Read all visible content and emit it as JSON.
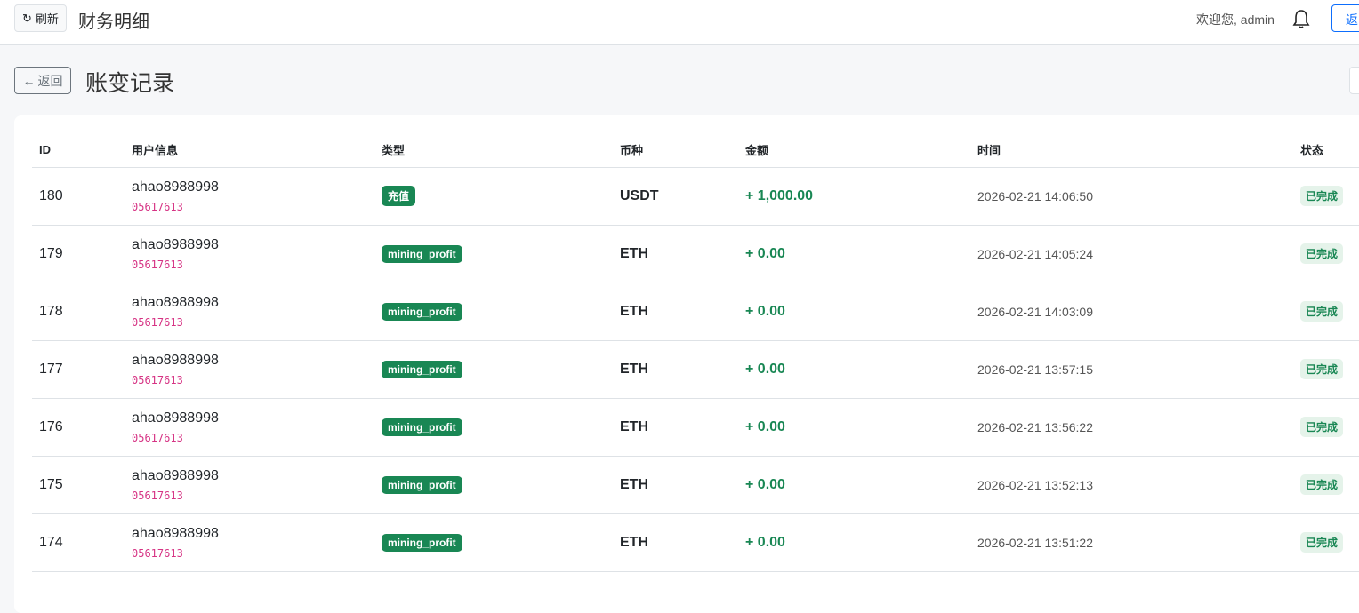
{
  "topbar": {
    "refresh_label": "刷新",
    "title": "财务明细",
    "welcome": "欢迎您, admin",
    "return_label": "返回"
  },
  "page": {
    "back_label": "返回",
    "title": "账变记录"
  },
  "table": {
    "headers": [
      "ID",
      "用户信息",
      "类型",
      "币种",
      "金额",
      "时间",
      "状态"
    ],
    "rows": [
      {
        "id": "180",
        "user": "ahao8988998",
        "uid": "05617613",
        "type": "充值",
        "coin": "USDT",
        "amount": "+ 1,000.00",
        "time": "2026-02-21 14:06:50",
        "status": "已完成"
      },
      {
        "id": "179",
        "user": "ahao8988998",
        "uid": "05617613",
        "type": "mining_profit",
        "coin": "ETH",
        "amount": "+ 0.00",
        "time": "2026-02-21 14:05:24",
        "status": "已完成"
      },
      {
        "id": "178",
        "user": "ahao8988998",
        "uid": "05617613",
        "type": "mining_profit",
        "coin": "ETH",
        "amount": "+ 0.00",
        "time": "2026-02-21 14:03:09",
        "status": "已完成"
      },
      {
        "id": "177",
        "user": "ahao8988998",
        "uid": "05617613",
        "type": "mining_profit",
        "coin": "ETH",
        "amount": "+ 0.00",
        "time": "2026-02-21 13:57:15",
        "status": "已完成"
      },
      {
        "id": "176",
        "user": "ahao8988998",
        "uid": "05617613",
        "type": "mining_profit",
        "coin": "ETH",
        "amount": "+ 0.00",
        "time": "2026-02-21 13:56:22",
        "status": "已完成"
      },
      {
        "id": "175",
        "user": "ahao8988998",
        "uid": "05617613",
        "type": "mining_profit",
        "coin": "ETH",
        "amount": "+ 0.00",
        "time": "2026-02-21 13:52:13",
        "status": "已完成"
      },
      {
        "id": "174",
        "user": "ahao8988998",
        "uid": "05617613",
        "type": "mining_profit",
        "coin": "ETH",
        "amount": "+ 0.00",
        "time": "2026-02-21 13:51:22",
        "status": "已完成"
      }
    ]
  },
  "colors": {
    "success": "#198754",
    "primary": "#0d6efd",
    "uid": "#d63384"
  },
  "icons": {
    "refresh": "refresh-icon",
    "back": "arrow-left-icon",
    "bell": "bell-icon"
  }
}
